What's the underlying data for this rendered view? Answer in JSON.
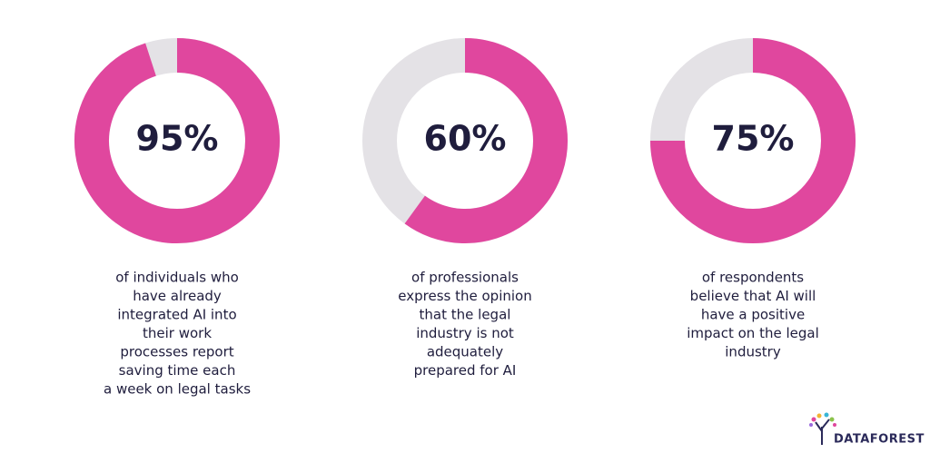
{
  "chart_data": [
    {
      "type": "donut",
      "values": [
        95
      ],
      "value_labels": [
        "95%"
      ],
      "color": "#e0479e",
      "track_color": "#e4e2e6",
      "caption": [
        "of individuals who",
        "have already",
        "integrated AI into",
        "their work",
        "processes report",
        "saving time each",
        "a week on legal tasks"
      ]
    },
    {
      "type": "donut",
      "values": [
        60
      ],
      "value_labels": [
        "60%"
      ],
      "color": "#e0479e",
      "track_color": "#e4e2e6",
      "caption": [
        "of professionals",
        "express the opinion",
        "that the legal",
        "industry is not",
        "adequately",
        "prepared for AI"
      ]
    },
    {
      "type": "donut",
      "values": [
        75
      ],
      "value_labels": [
        "75%"
      ],
      "color": "#e0479e",
      "track_color": "#e4e2e6",
      "caption": [
        "of respondents",
        "believe that AI will",
        "have a positive",
        "impact on the legal",
        "industry"
      ]
    }
  ],
  "logo": {
    "text": "DATAFOREST"
  }
}
